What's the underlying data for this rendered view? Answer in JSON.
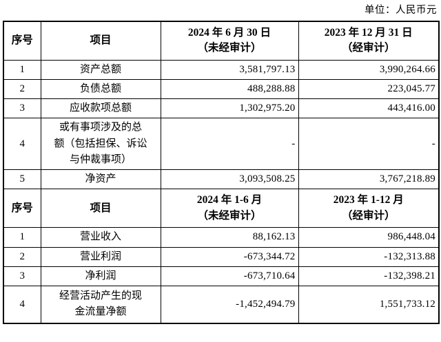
{
  "unit_label": "单位：人民币元",
  "colors": {
    "border": "#000000",
    "text": "#000000",
    "background": "#ffffff"
  },
  "table": {
    "section_a": {
      "header": {
        "seq": "序号",
        "item": "项目",
        "col3": "2024 年 6 月 30 日\n（未经审计）",
        "col4": "2023 年 12 月 31 日\n（经审计）"
      },
      "rows": [
        {
          "seq": "1",
          "item": "资产总额",
          "v1": "3,581,797.13",
          "v2": "3,990,264.66"
        },
        {
          "seq": "2",
          "item": "负债总额",
          "v1": "488,288.88",
          "v2": "223,045.77"
        },
        {
          "seq": "3",
          "item": "应收款项总额",
          "v1": "1,302,975.20",
          "v2": "443,416.00"
        },
        {
          "seq": "4",
          "item": "或有事项涉及的总\n额（包括担保、诉讼\n与仲裁事项）",
          "v1": "-",
          "v2": "-"
        },
        {
          "seq": "5",
          "item": "净资产",
          "v1": "3,093,508.25",
          "v2": "3,767,218.89"
        }
      ]
    },
    "section_b": {
      "header": {
        "seq": "序号",
        "item": "项目",
        "col3": "2024 年 1-6 月\n（未经审计）",
        "col4": "2023 年 1-12 月\n（经审计）"
      },
      "rows": [
        {
          "seq": "1",
          "item": "营业收入",
          "v1": "88,162.13",
          "v2": "986,448.04"
        },
        {
          "seq": "2",
          "item": "营业利润",
          "v1": "-673,344.72",
          "v2": "-132,313.88"
        },
        {
          "seq": "3",
          "item": "净利润",
          "v1": "-673,710.64",
          "v2": "-132,398.21"
        },
        {
          "seq": "4",
          "item": "经营活动产生的现\n金流量净额",
          "v1": "-1,452,494.79",
          "v2": "1,551,733.12"
        }
      ]
    }
  }
}
